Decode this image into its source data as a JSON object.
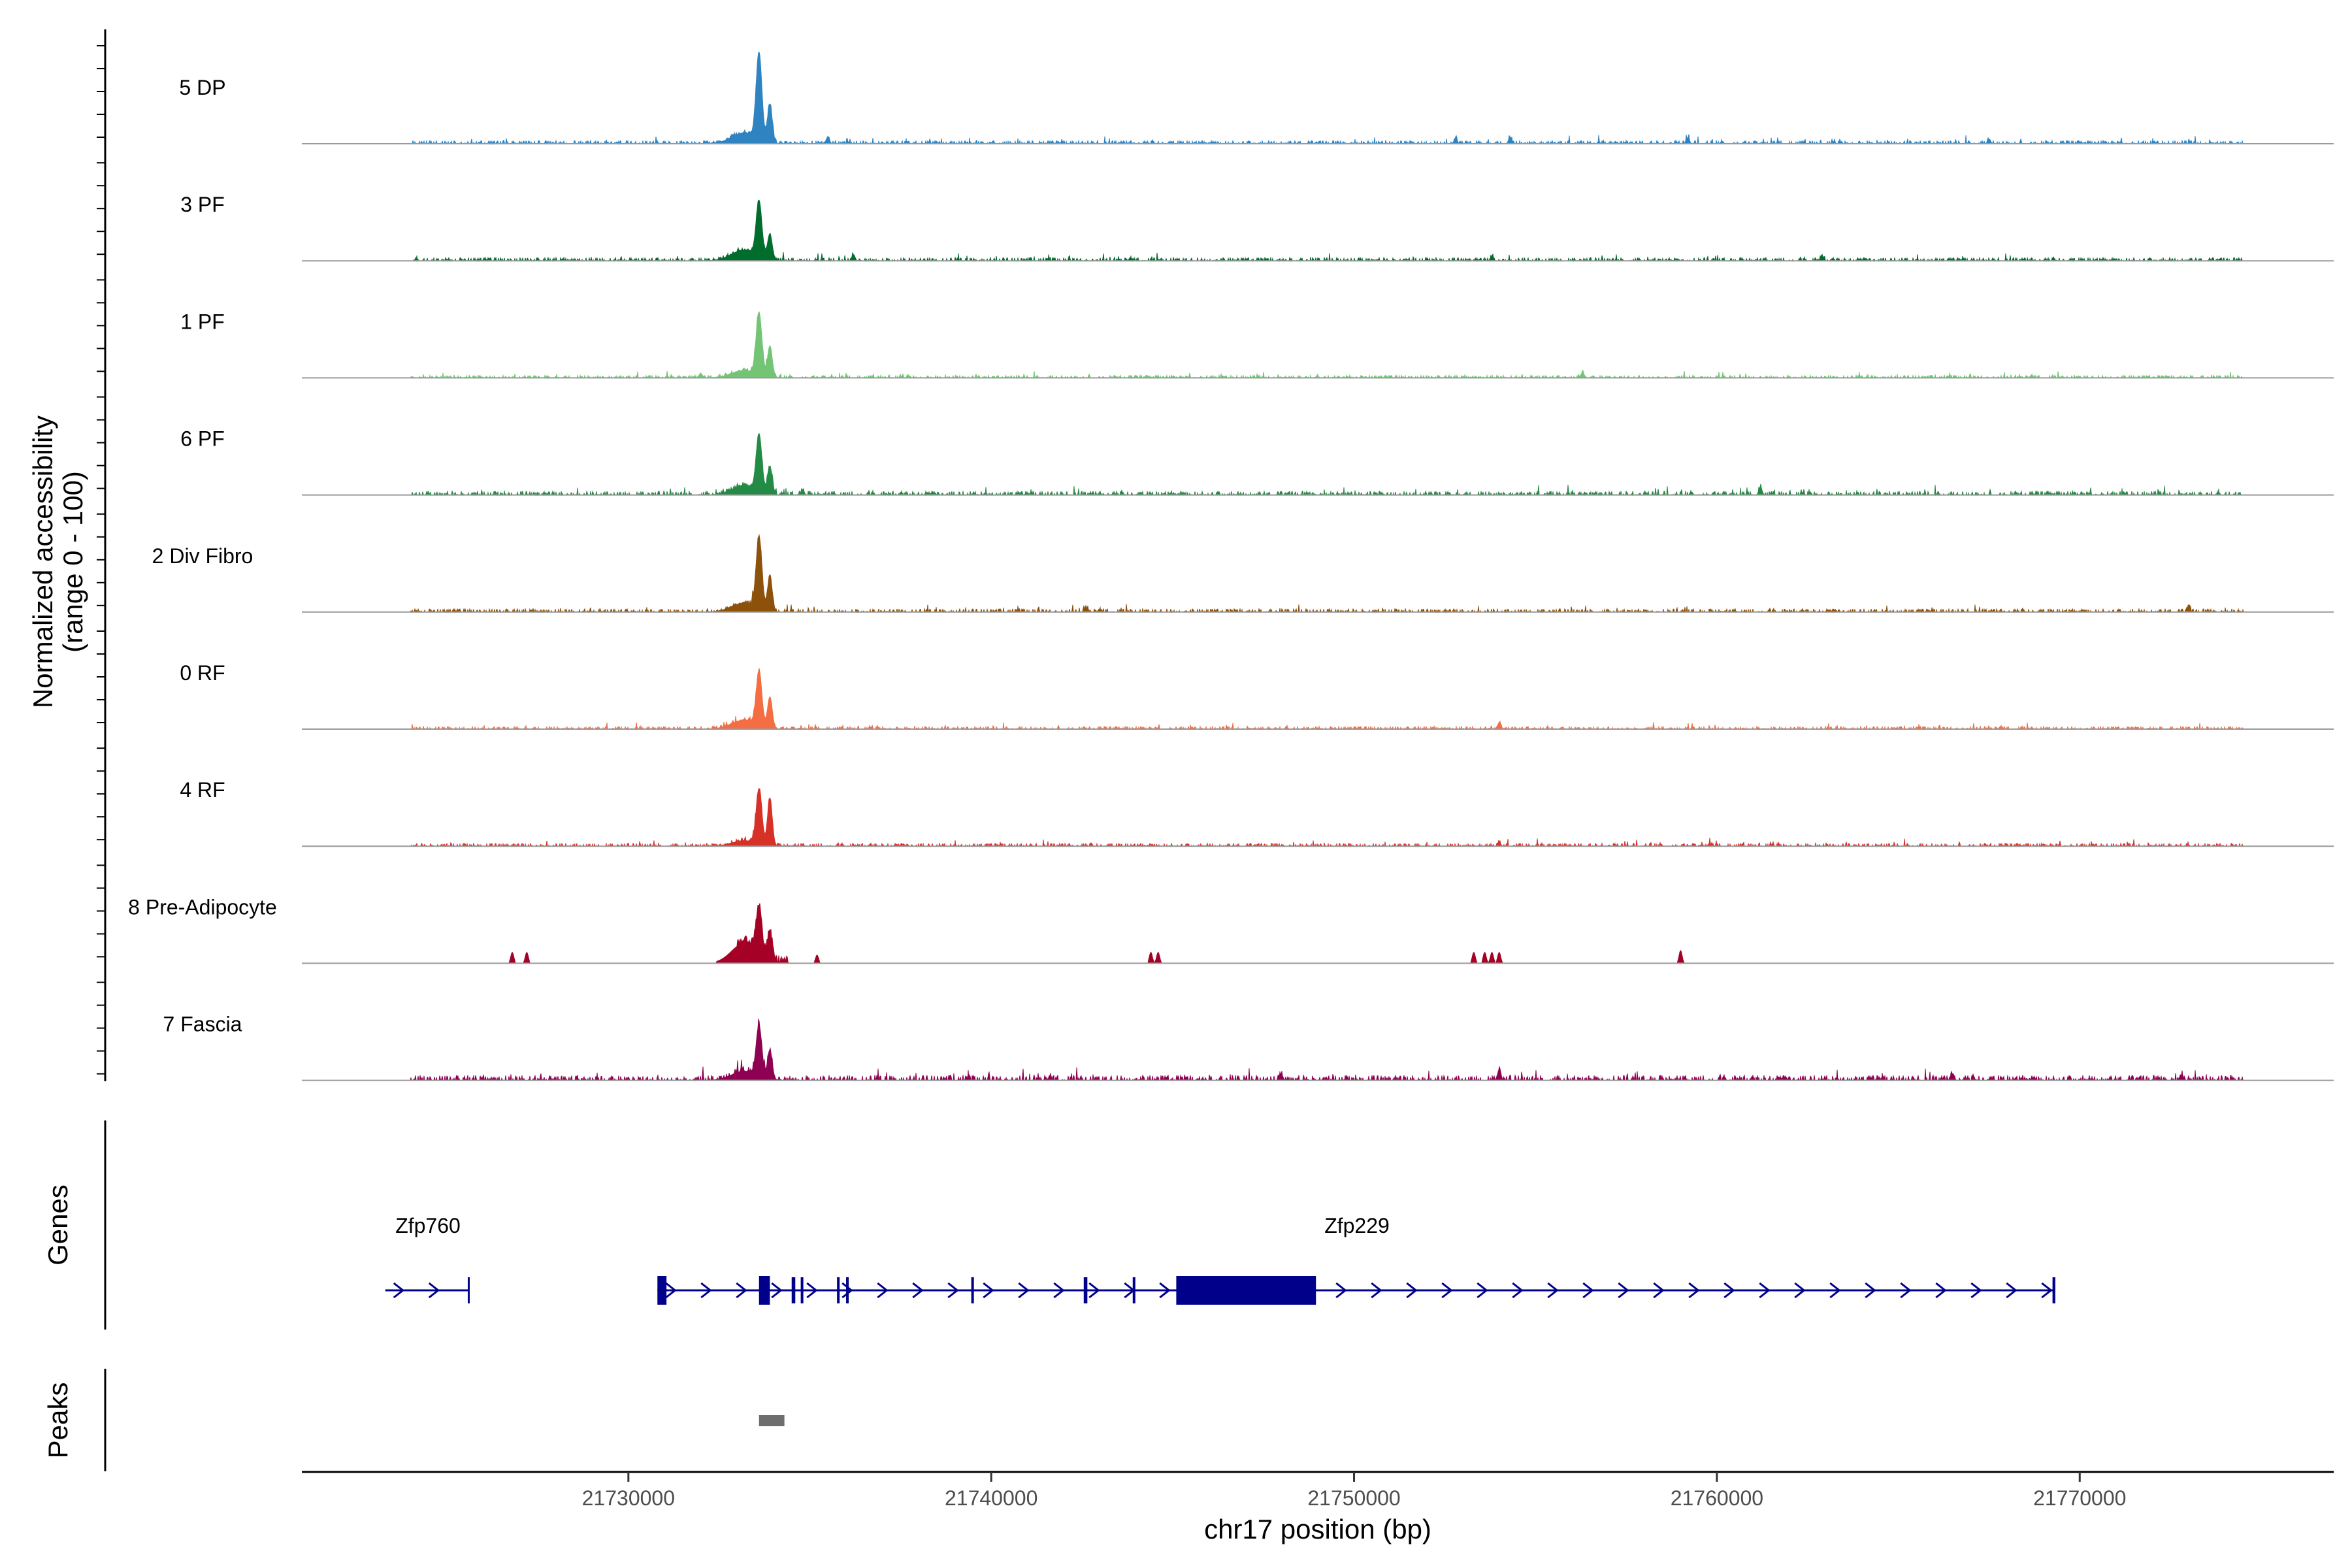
{
  "chart_data": {
    "type": "coverage",
    "region": {
      "chromosome": "chr17",
      "start": 21721000,
      "end": 21777000
    },
    "ylabel_line1": "Normalized accessibility",
    "ylabel_line2": "(range 0 - 100)",
    "xlabel": "chr17 position (bp)",
    "genes_label": "Genes",
    "peaks_label": "Peaks",
    "x_ticks": [
      {
        "value": 21730000,
        "label": "21730000"
      },
      {
        "value": 21740000,
        "label": "21740000"
      },
      {
        "value": 21750000,
        "label": "21750000"
      },
      {
        "value": 21760000,
        "label": "21760000"
      },
      {
        "value": 21770000,
        "label": "21770000"
      }
    ],
    "tracks": [
      {
        "name": "5 DP",
        "color": "#2f83c0",
        "peak1": 95,
        "peak2": 42,
        "shoulder": 12,
        "noise_scale": 1.0,
        "sparse": false,
        "bumps": [
          {
            "pos": 21735500,
            "h": 8
          },
          {
            "pos": 21752800,
            "h": 6
          },
          {
            "pos": 21754300,
            "h": 7
          },
          {
            "pos": 21759200,
            "h": 6
          },
          {
            "pos": 21767500,
            "h": 5
          }
        ]
      },
      {
        "name": "3 PF",
        "color": "#006d2c",
        "peak1": 60,
        "peak2": 28,
        "shoulder": 12,
        "noise_scale": 1.0,
        "sparse": false,
        "bumps": [
          {
            "pos": 21736200,
            "h": 7
          },
          {
            "pos": 21753800,
            "h": 5
          },
          {
            "pos": 21762900,
            "h": 5
          }
        ]
      },
      {
        "name": "1 PF",
        "color": "#74c476",
        "peak1": 68,
        "peak2": 34,
        "shoulder": 8,
        "noise_scale": 0.8,
        "sparse": false,
        "bumps": [
          {
            "pos": 21732000,
            "h": 4
          },
          {
            "pos": 21756300,
            "h": 6
          }
        ]
      },
      {
        "name": "6 PF",
        "color": "#238b45",
        "peak1": 62,
        "peak2": 30,
        "shoulder": 10,
        "noise_scale": 1.2,
        "sparse": false,
        "bumps": [
          {
            "pos": 21761200,
            "h": 9
          },
          {
            "pos": 21734800,
            "h": 6
          }
        ]
      },
      {
        "name": "2 Div Fibro",
        "color": "#8c510a",
        "peak1": 78,
        "peak2": 38,
        "shoulder": 10,
        "noise_scale": 1.0,
        "sparse": false,
        "bumps": [
          {
            "pos": 21773000,
            "h": 6
          },
          {
            "pos": 21742600,
            "h": 5
          }
        ]
      },
      {
        "name": "0 RF",
        "color": "#f46d43",
        "peak1": 58,
        "peak2": 34,
        "shoulder": 10,
        "noise_scale": 0.8,
        "sparse": false,
        "bumps": [
          {
            "pos": 21754000,
            "h": 7
          }
        ]
      },
      {
        "name": "4 RF",
        "color": "#d73027",
        "peak1": 60,
        "peak2": 52,
        "shoulder": 6,
        "noise_scale": 0.9,
        "sparse": false,
        "bumps": [
          {
            "pos": 21754000,
            "h": 4
          },
          {
            "pos": 21759800,
            "h": 3
          }
        ]
      },
      {
        "name": "8 Pre-Adipocyte",
        "color": "#a50026",
        "peak1": 50,
        "peak2": 30,
        "shoulder": 22,
        "noise_scale": 0,
        "sparse": true,
        "bumps": [
          {
            "pos": 21726800,
            "h": 12
          },
          {
            "pos": 21727200,
            "h": 12
          },
          {
            "pos": 21744400,
            "h": 12
          },
          {
            "pos": 21744600,
            "h": 12
          },
          {
            "pos": 21753300,
            "h": 12
          },
          {
            "pos": 21753600,
            "h": 12
          },
          {
            "pos": 21753800,
            "h": 12
          },
          {
            "pos": 21754000,
            "h": 12
          },
          {
            "pos": 21759000,
            "h": 14
          },
          {
            "pos": 21735200,
            "h": 9
          }
        ]
      },
      {
        "name": "7 Fascia",
        "color": "#8e0152",
        "peak1": 55,
        "peak2": 32,
        "shoulder": 10,
        "noise_scale": 1.6,
        "sparse": false,
        "bumps": [
          {
            "pos": 21754000,
            "h": 12
          },
          {
            "pos": 21748000,
            "h": 6
          },
          {
            "pos": 21766500,
            "h": 6
          },
          {
            "pos": 21772800,
            "h": 6
          }
        ]
      }
    ],
    "genes": [
      {
        "name": "Zfp760",
        "start": 21723300,
        "end": 21725600,
        "strand": "+",
        "exons": []
      },
      {
        "name": "Zfp229",
        "start": 21730800,
        "end": 21769300,
        "strand": "+",
        "exons": [
          {
            "start": 21730800,
            "end": 21731050
          },
          {
            "start": 21733600,
            "end": 21733900
          },
          {
            "start": 21734500,
            "end": 21734600
          },
          {
            "start": 21734750,
            "end": 21734800
          },
          {
            "start": 21735750,
            "end": 21735800
          },
          {
            "start": 21736000,
            "end": 21736050
          },
          {
            "start": 21739450,
            "end": 21739500
          },
          {
            "start": 21742550,
            "end": 21742650
          },
          {
            "start": 21743900,
            "end": 21743950
          },
          {
            "start": 21745100,
            "end": 21748950
          },
          {
            "start": 21769250,
            "end": 21769300
          }
        ]
      }
    ],
    "peaks": [
      {
        "start": 21733600,
        "end": 21734300
      }
    ]
  }
}
